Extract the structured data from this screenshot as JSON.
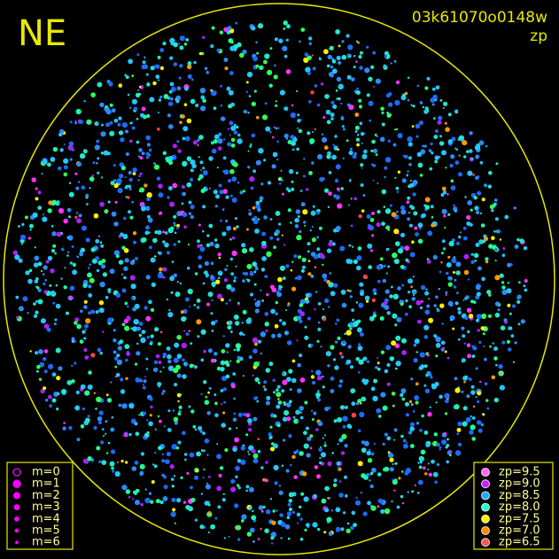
{
  "header": {
    "title": "NE",
    "image_id": "03k61070o0148w",
    "color_key": "zp"
  },
  "legend_magnitude": {
    "color": "#ff00ff",
    "entries": [
      {
        "label": "m=0"
      },
      {
        "label": "m=1"
      },
      {
        "label": "m=2"
      },
      {
        "label": "m=3"
      },
      {
        "label": "m=4"
      },
      {
        "label": "m=5"
      },
      {
        "label": "m=6"
      }
    ]
  },
  "legend_zp": {
    "entries": [
      {
        "label": "zp=9.5",
        "color": "#ff66ff"
      },
      {
        "label": "zp=9.0",
        "color": "#cc22ff"
      },
      {
        "label": "zp=8.5",
        "color": "#22aaff"
      },
      {
        "label": "zp=8.0",
        "color": "#22ffcc"
      },
      {
        "label": "zp=7.5",
        "color": "#ffee00"
      },
      {
        "label": "zp=7.0",
        "color": "#ff8800"
      },
      {
        "label": "zp=6.5",
        "color": "#ff5555"
      }
    ]
  }
}
